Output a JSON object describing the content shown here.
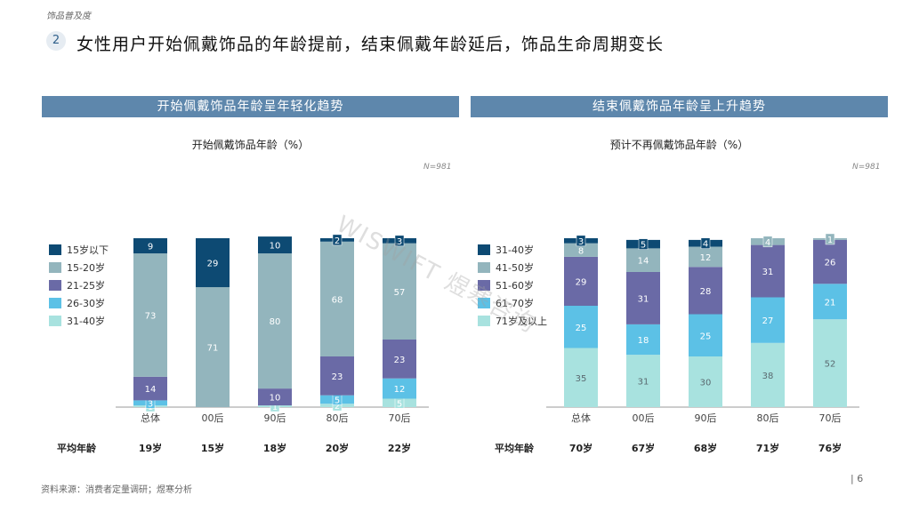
{
  "section_label": "饰品普及度",
  "badge_number": "2",
  "headline": "女性用户开始佩戴饰品的年龄提前，结束佩戴年龄延后，饰品生命周期变长",
  "source": "资料来源：消费者定量调研；煜寒分析",
  "page_number": "| 6",
  "watermark": "WISWIFT 煜寒咨询",
  "colors": [
    "#0d4a73",
    "#93b5bd",
    "#6a6aa6",
    "#5cc1e6",
    "#a8e2df"
  ],
  "avg_label": "平均年龄",
  "left_panel": {
    "header": "开始佩戴饰品年龄呈年轻化趋势",
    "n_label": "N=981",
    "avg_ages": [
      "19岁",
      "15岁",
      "18岁",
      "20岁",
      "22岁"
    ]
  },
  "right_panel": {
    "header": "结束佩戴饰品年龄呈上升趋势",
    "n_label": "N=981",
    "avg_ages": [
      "70岁",
      "67岁",
      "68岁",
      "71岁",
      "76岁"
    ]
  },
  "chart_data": [
    {
      "type": "bar",
      "stacked": true,
      "title": "开始佩戴饰品年龄（%）",
      "categories": [
        "总体",
        "00后",
        "90后",
        "80后",
        "70后"
      ],
      "series": [
        {
          "name": "15岁以下",
          "values": [
            9,
            29,
            10,
            2,
            3
          ]
        },
        {
          "name": "15-20岁",
          "values": [
            73,
            71,
            80,
            68,
            57
          ]
        },
        {
          "name": "21-25岁",
          "values": [
            14,
            0,
            10,
            23,
            23
          ]
        },
        {
          "name": "26-30岁",
          "values": [
            3,
            0,
            0,
            5,
            12
          ]
        },
        {
          "name": "31-40岁",
          "values": [
            1,
            0,
            1,
            2,
            5
          ]
        }
      ],
      "legend_position": "left",
      "ylim": [
        0,
        100
      ]
    },
    {
      "type": "bar",
      "stacked": true,
      "title": "预计不再佩戴饰品年龄（%）",
      "categories": [
        "总体",
        "00后",
        "90后",
        "80后",
        "70后"
      ],
      "series": [
        {
          "name": "31-40岁",
          "values": [
            3,
            5,
            4,
            0,
            0
          ]
        },
        {
          "name": "41-50岁",
          "values": [
            8,
            14,
            12,
            4,
            1
          ]
        },
        {
          "name": "51-60岁",
          "values": [
            29,
            31,
            28,
            31,
            26
          ]
        },
        {
          "name": "61-70岁",
          "values": [
            25,
            18,
            25,
            27,
            21
          ]
        },
        {
          "name": "71岁及以上",
          "values": [
            35,
            31,
            30,
            38,
            52
          ]
        }
      ],
      "legend_position": "left",
      "ylim": [
        0,
        100
      ]
    }
  ]
}
